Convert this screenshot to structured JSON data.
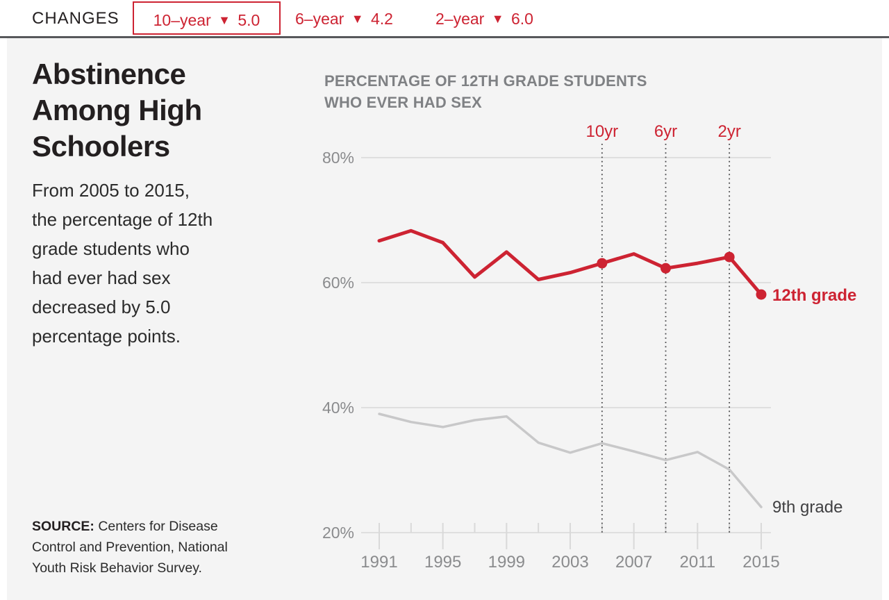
{
  "colors": {
    "accent_red": "#cd2332",
    "gray_line": "#c8c8c9",
    "grid": "#dfdfdf",
    "tick": "#d9d9d9",
    "axis_text": "#8a8b8d",
    "dotted": "#48484a",
    "label_dark": "#404042"
  },
  "header": {
    "changes_label": "CHANGES",
    "stats": [
      {
        "label": "10–year",
        "arrow": "▼",
        "value": "5.0",
        "selected": true
      },
      {
        "label": "6–year",
        "arrow": "▼",
        "value": "4.2",
        "selected": false
      },
      {
        "label": "2–year",
        "arrow": "▼",
        "value": "6.0",
        "selected": false
      }
    ]
  },
  "sidebar": {
    "title_lines": [
      "Abstinence",
      "Among High",
      "Schoolers"
    ],
    "description_lines": [
      "From 2005 to 2015,",
      "the percentage of 12th",
      "grade students who",
      "had ever had sex",
      "decreased by 5.0",
      "percentage points."
    ],
    "source": {
      "label": "SOURCE:",
      "line1": " Centers for Disease",
      "line2": "Control and Prevention, National",
      "line3": "Youth Risk Behavior Survey."
    }
  },
  "chart": {
    "heading_lines": [
      "PERCENTAGE OF 12TH GRADE STUDENTS",
      "WHO EVER HAD SEX"
    ]
  },
  "chart_data": {
    "type": "line",
    "title": "PERCENTAGE OF 12TH GRADE STUDENTS WHO EVER HAD SEX",
    "x": [
      1991,
      1993,
      1995,
      1997,
      1999,
      2001,
      2003,
      2005,
      2007,
      2009,
      2011,
      2013,
      2015
    ],
    "x_tick_labels": [
      1991,
      1995,
      1999,
      2003,
      2007,
      2011,
      2015
    ],
    "y_ticks": [
      20,
      40,
      60,
      80
    ],
    "y_tick_suffix": "%",
    "ylim": [
      20,
      84
    ],
    "grid": true,
    "legend_position": "end-of-line-labels",
    "series": [
      {
        "name": "12th grade",
        "color": "#cd2332",
        "emphasis": true,
        "values": [
          66.7,
          68.3,
          66.4,
          60.9,
          64.9,
          60.5,
          61.6,
          63.1,
          64.6,
          62.3,
          63.1,
          64.1,
          58.1
        ],
        "marker_years": [
          2005,
          2009,
          2013,
          2015
        ]
      },
      {
        "name": "9th grade",
        "color": "#c8c8c9",
        "emphasis": false,
        "values": [
          39.0,
          37.7,
          36.9,
          38.0,
          38.6,
          34.4,
          32.8,
          34.3,
          33.0,
          31.6,
          32.9,
          30.1,
          24.1
        ],
        "marker_years": []
      }
    ],
    "annotations": [
      {
        "label": "10yr",
        "year": 2005
      },
      {
        "label": "6yr",
        "year": 2009
      },
      {
        "label": "2yr",
        "year": 2013
      }
    ]
  }
}
